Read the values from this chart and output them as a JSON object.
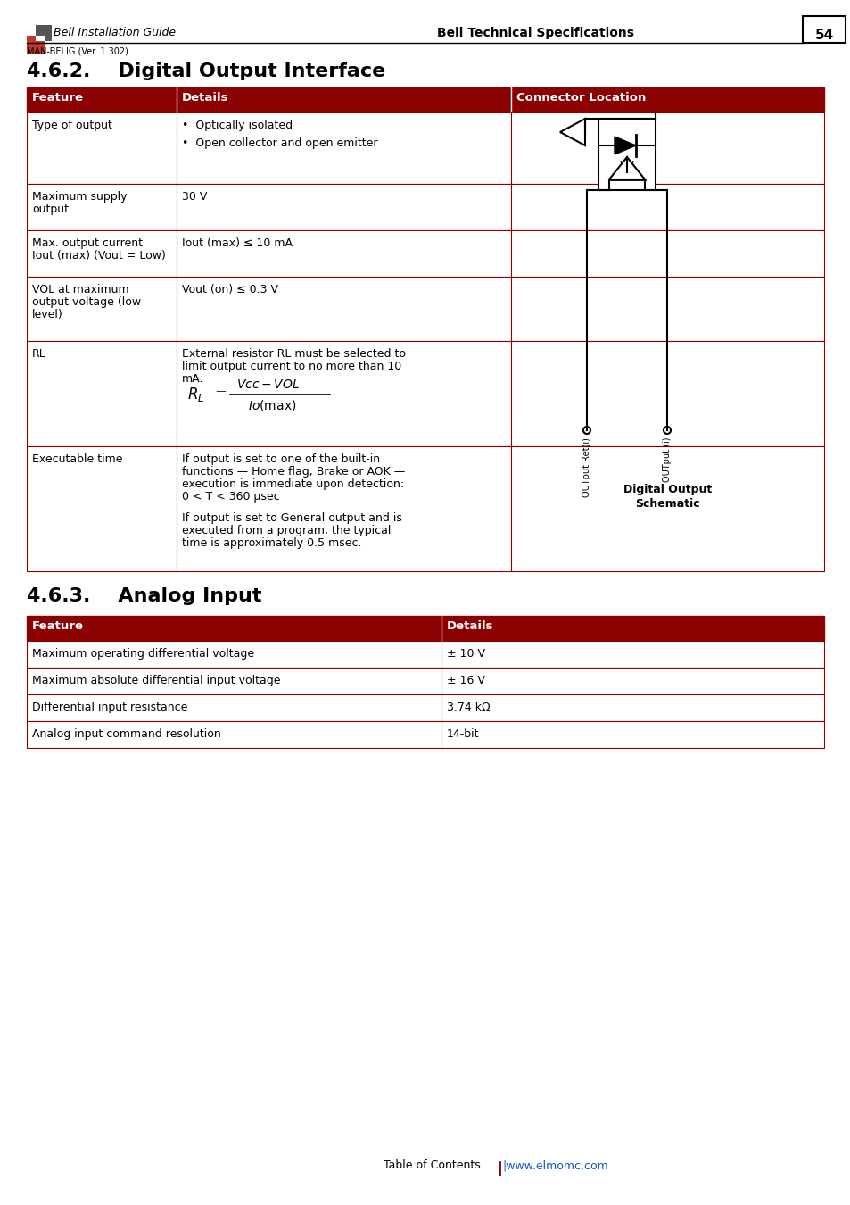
{
  "page_bg": "#ffffff",
  "dark_red": "#8B0000",
  "header_text_color": "#ffffff",
  "body_text_color": "#000000",
  "border_color": "#8B0000",
  "section_462_title": "4.6.2.    Digital Output Interface",
  "section_463_title": "4.6.3.    Analog Input",
  "header_462": [
    "Feature",
    "Details",
    "Connector Location"
  ],
  "header_463": [
    "Feature",
    "Details"
  ],
  "rows_463": [
    [
      "Maximum operating differential voltage",
      "± 10 V"
    ],
    [
      "Maximum absolute differential input voltage",
      "± 16 V"
    ],
    [
      "Differential input resistance",
      "3.74 kΩ"
    ],
    [
      "Analog input command resolution",
      "14-bit"
    ]
  ],
  "footer_text": "Table of Contents",
  "footer_link": "|www.elmomc.com",
  "page_number": "54",
  "header_left": "Bell Installation Guide",
  "header_center": "Bell Technical Specifications",
  "header_version": "MAN-BELIG (Ver. 1.302)"
}
